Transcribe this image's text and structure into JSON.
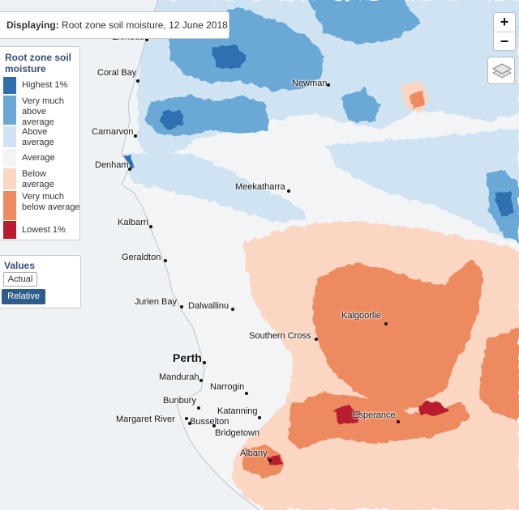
{
  "header": {
    "label": "Displaying:",
    "value": "Root zone soil moisture, 12 June 2018"
  },
  "legend": {
    "title": "Root zone soil moisture",
    "items": [
      {
        "label": "Highest 1%",
        "color": "#2e6fb0"
      },
      {
        "label": "Very much above average",
        "color": "#6aa9d6"
      },
      {
        "label": "Above average",
        "color": "#cfe3f2"
      },
      {
        "label": "Average",
        "color": "#f3f4f6"
      },
      {
        "label": "Below average",
        "color": "#fbd6c3"
      },
      {
        "label": "Very much below average",
        "color": "#ee8a60"
      },
      {
        "label": "Lowest 1%",
        "color": "#b81c2e"
      }
    ]
  },
  "values": {
    "title": "Values",
    "actual_label": "Actual",
    "relative_label": "Relative"
  },
  "controls": {
    "zoom_in": "+",
    "zoom_out": "−",
    "layers_icon": "layers-icon"
  },
  "towns": [
    {
      "name": "Exmouth"
    },
    {
      "name": "Coral Bay"
    },
    {
      "name": "Newman"
    },
    {
      "name": "Carnarvon"
    },
    {
      "name": "Denham"
    },
    {
      "name": "Meekatharra"
    },
    {
      "name": "Kalbarri"
    },
    {
      "name": "Geraldton"
    },
    {
      "name": "Jurien Bay"
    },
    {
      "name": "Dalwallinu"
    },
    {
      "name": "Kalgoorlie"
    },
    {
      "name": "Southern Cross"
    },
    {
      "name": "Perth"
    },
    {
      "name": "Mandurah"
    },
    {
      "name": "Narrogin"
    },
    {
      "name": "Bunbury"
    },
    {
      "name": "Katanning"
    },
    {
      "name": "Margaret River"
    },
    {
      "name": "Busselton"
    },
    {
      "name": "Esperance"
    },
    {
      "name": "Bridgetown"
    },
    {
      "name": "Albany"
    }
  ]
}
